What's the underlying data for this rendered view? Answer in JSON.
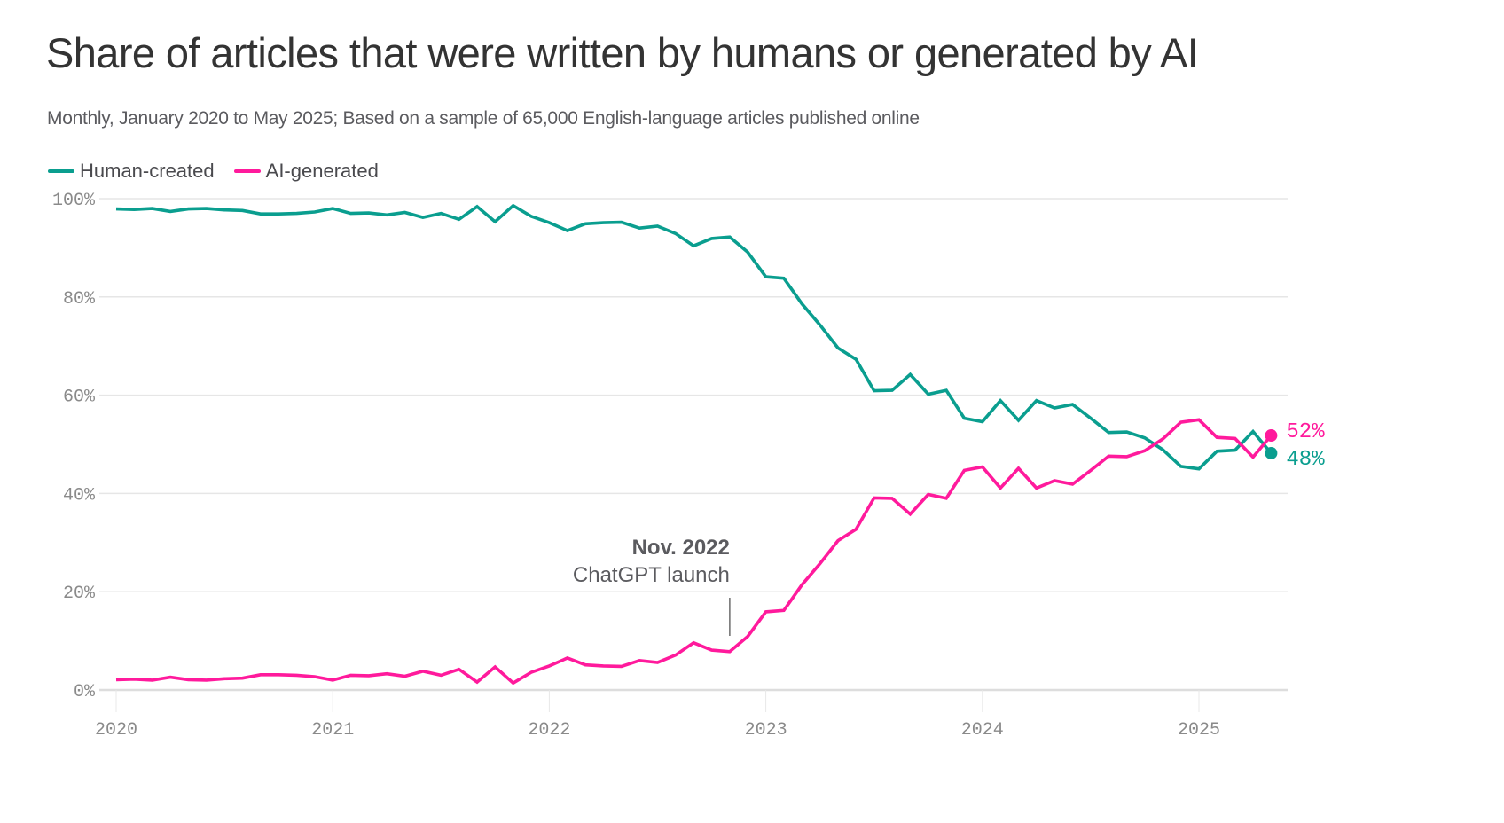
{
  "header": {
    "title": "Share of articles that were written by humans or generated by AI",
    "subtitle": "Monthly, January 2020 to May 2025; Based on a sample of 65,000 English-language articles published online"
  },
  "legend": [
    {
      "label": "Human-created",
      "color": "#0a9e8f"
    },
    {
      "label": "AI-generated",
      "color": "#ff1a9c"
    }
  ],
  "chart_data": {
    "type": "line",
    "title": "Share of articles that were written by humans or generated by AI",
    "subtitle": "Monthly, January 2020 to May 2025; Based on a sample of 65,000 English-language articles published online",
    "xlabel": "",
    "ylabel": "",
    "x_start": "2020-01",
    "x_end": "2025-05",
    "x_ticks": [
      "2020",
      "2021",
      "2022",
      "2023",
      "2024",
      "2025"
    ],
    "y_ticks": [
      "0%",
      "20%",
      "40%",
      "60%",
      "80%",
      "100%"
    ],
    "ylim": [
      0,
      100
    ],
    "grid": true,
    "legend_position": "top-left",
    "series": [
      {
        "name": "Human-created",
        "color": "#0a9e8f",
        "values": [
          97.9,
          97.8,
          98.0,
          97.4,
          97.9,
          98.0,
          97.7,
          97.6,
          96.9,
          96.9,
          97.0,
          97.3,
          98.0,
          97.0,
          97.1,
          96.7,
          97.2,
          96.2,
          97.0,
          95.8,
          98.4,
          95.3,
          98.6,
          96.4,
          95.1,
          93.5,
          94.9,
          95.1,
          95.2,
          94.0,
          94.4,
          92.9,
          90.4,
          91.9,
          92.2,
          89.1,
          84.1,
          83.8,
          78.6,
          74.3,
          69.6,
          67.3,
          60.9,
          61.0,
          64.2,
          60.2,
          61.0,
          55.3,
          54.6,
          58.9,
          54.9,
          58.9,
          57.4,
          58.1,
          55.3,
          52.4,
          52.5,
          51.3,
          48.9,
          45.5,
          45.0,
          48.6,
          48.8,
          52.6,
          48.2
        ],
        "end_label": "48%"
      },
      {
        "name": "AI-generated",
        "color": "#ff1a9c",
        "values": [
          2.1,
          2.2,
          2.0,
          2.6,
          2.1,
          2.0,
          2.3,
          2.4,
          3.1,
          3.1,
          3.0,
          2.7,
          2.0,
          3.0,
          2.9,
          3.3,
          2.8,
          3.8,
          3.0,
          4.2,
          1.6,
          4.7,
          1.4,
          3.6,
          4.9,
          6.5,
          5.1,
          4.9,
          4.8,
          6.0,
          5.6,
          7.1,
          9.6,
          8.1,
          7.8,
          10.9,
          15.9,
          16.2,
          21.4,
          25.7,
          30.4,
          32.7,
          39.1,
          39.0,
          35.8,
          39.8,
          39.0,
          44.7,
          45.4,
          41.1,
          45.1,
          41.1,
          42.6,
          41.9,
          44.7,
          47.6,
          47.5,
          48.7,
          51.1,
          54.5,
          55.0,
          51.4,
          51.2,
          47.4,
          51.8
        ],
        "end_label": "52%"
      }
    ],
    "annotations": [
      {
        "x": "2022-11",
        "title": "Nov. 2022",
        "text": "ChatGPT launch"
      }
    ]
  }
}
